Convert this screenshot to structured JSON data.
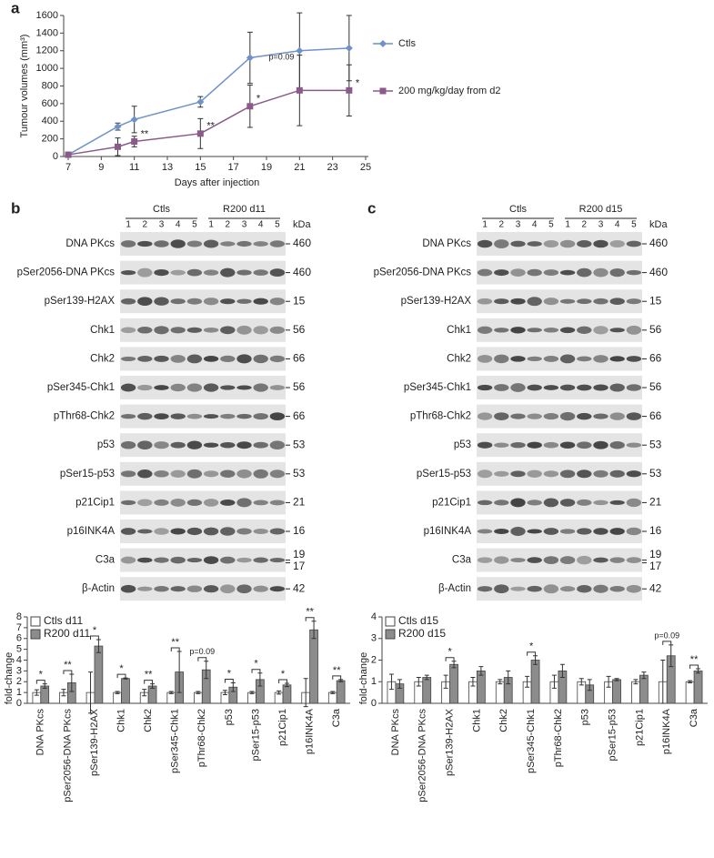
{
  "chart_data": [
    {
      "type": "line",
      "label": "a",
      "x_label": "Days after injection",
      "y_label": "Tumour volumes (mm³)",
      "x": [
        7,
        10,
        11,
        15,
        18,
        21,
        24
      ],
      "series": [
        {
          "name": "Ctls",
          "color": "#6f93c9",
          "marker": "diamond",
          "values": [
            20,
            340,
            420,
            620,
            1120,
            1200,
            1230
          ],
          "errors": [
            10,
            40,
            150,
            60,
            290,
            430,
            370
          ]
        },
        {
          "name": "200 mg/kg/day from d2",
          "color": "#8b5a8a",
          "marker": "square",
          "values": [
            20,
            110,
            170,
            260,
            570,
            750,
            750
          ],
          "errors": [
            10,
            100,
            60,
            170,
            240,
            400,
            290
          ]
        }
      ],
      "significance": [
        null,
        null,
        "**",
        "**",
        "*",
        "p=0.09",
        "*"
      ],
      "xlim": [
        7,
        25
      ],
      "xticks": [
        7,
        9,
        11,
        13,
        15,
        17,
        19,
        21,
        23,
        25
      ],
      "ylim": [
        0,
        1600
      ],
      "yticks": [
        0,
        200,
        400,
        600,
        800,
        1000,
        1200,
        1400,
        1600
      ]
    },
    {
      "type": "bar",
      "y_label": "fold-change",
      "categories": [
        "DNA PKcs",
        "pSer2056-DNA PKcs",
        "pSer139-H2AX",
        "Chk1",
        "Chk2",
        "pSer345-Chk1",
        "pThr68-Chk2",
        "p53",
        "pSer15-p53",
        "p21Cip1",
        "p16INK4A",
        "C3a"
      ],
      "series": [
        {
          "name": "Ctls d11",
          "color": "#ffffff",
          "values": [
            1,
            1,
            1,
            1,
            1,
            1,
            1,
            1,
            1,
            1,
            1,
            1
          ],
          "errors": [
            0.25,
            0.3,
            1.9,
            0.1,
            0.3,
            0.1,
            0.1,
            0.2,
            0.1,
            0.15,
            1.3,
            0.1
          ]
        },
        {
          "name": "R200 d11",
          "color": "#8c8c8c",
          "values": [
            1.6,
            1.9,
            5.3,
            2.3,
            1.6,
            2.9,
            3.1,
            1.5,
            2.2,
            1.7,
            6.8,
            2.1
          ],
          "errors": [
            0.2,
            0.8,
            0.6,
            0.05,
            0.2,
            1.9,
            0.8,
            0.4,
            0.6,
            0.15,
            0.8,
            0.1
          ]
        }
      ],
      "significance": [
        "*",
        "**",
        "*",
        "*",
        "**",
        "**",
        "p=0.09",
        "*",
        "*",
        "*",
        "**",
        "**"
      ],
      "ylim": [
        0,
        8
      ],
      "yticks": [
        0,
        1,
        2,
        3,
        4,
        5,
        6,
        7,
        8
      ]
    },
    {
      "type": "bar",
      "y_label": "fold-change",
      "categories": [
        "DNA PKcs",
        "pSer2056-DNA PKcs",
        "pSer139-H2AX",
        "Chk1",
        "Chk2",
        "pSer345-Chk1",
        "pThr68-Chk2",
        "p53",
        "pSer15-p53",
        "p21Cip1",
        "p16INK4A",
        "C3a"
      ],
      "series": [
        {
          "name": "Ctls d15",
          "color": "#ffffff",
          "values": [
            1,
            1,
            1,
            1,
            1,
            1,
            1,
            1,
            1,
            1,
            1,
            1
          ],
          "errors": [
            0.35,
            0.2,
            0.3,
            0.2,
            0.1,
            0.25,
            0.3,
            0.15,
            0.25,
            0.1,
            1,
            0.05
          ]
        },
        {
          "name": "R200 d15",
          "color": "#8c8c8c",
          "values": [
            0.9,
            1.2,
            1.8,
            1.5,
            1.2,
            2,
            1.5,
            0.85,
            1.1,
            1.3,
            2.2,
            1.5
          ],
          "errors": [
            0.2,
            0.1,
            0.15,
            0.2,
            0.3,
            0.2,
            0.3,
            0.25,
            0.05,
            0.15,
            0.5,
            0.1
          ]
        }
      ],
      "significance": [
        null,
        null,
        "*",
        null,
        null,
        "*",
        null,
        null,
        null,
        null,
        "p=0.09",
        "**"
      ],
      "ylim": [
        0,
        4
      ],
      "yticks": [
        0,
        1,
        2,
        3,
        4
      ]
    }
  ],
  "blots": [
    {
      "label": "b",
      "unit": "kDa",
      "groups": [
        {
          "name": "Ctls",
          "lanes": [
            1,
            2,
            3,
            4,
            5
          ]
        },
        {
          "name": "R200 d11",
          "lanes": [
            1,
            2,
            3,
            4,
            5
          ]
        }
      ],
      "rows": [
        {
          "name": "DNA PKcs",
          "kda": [
            460
          ]
        },
        {
          "name": "pSer2056-DNA PKcs",
          "kda": [
            460
          ]
        },
        {
          "name": "pSer139-H2AX",
          "kda": [
            15
          ]
        },
        {
          "name": "Chk1",
          "kda": [
            56
          ]
        },
        {
          "name": "Chk2",
          "kda": [
            66
          ]
        },
        {
          "name": "pSer345-Chk1",
          "kda": [
            56
          ]
        },
        {
          "name": "pThr68-Chk2",
          "kda": [
            66
          ]
        },
        {
          "name": "p53",
          "kda": [
            53
          ]
        },
        {
          "name": "pSer15-p53",
          "kda": [
            53
          ]
        },
        {
          "name": "p21Cip1",
          "kda": [
            21
          ]
        },
        {
          "name": "p16INK4A",
          "kda": [
            16
          ]
        },
        {
          "name": "C3a",
          "kda": [
            19,
            17
          ]
        },
        {
          "name": "β-Actin",
          "kda": [
            42
          ]
        }
      ]
    },
    {
      "label": "c",
      "unit": "kDa",
      "groups": [
        {
          "name": "Ctls",
          "lanes": [
            1,
            2,
            3,
            4,
            5
          ]
        },
        {
          "name": "R200 d15",
          "lanes": [
            1,
            2,
            3,
            4,
            5
          ]
        }
      ],
      "rows": [
        {
          "name": "DNA PKcs",
          "kda": [
            460
          ]
        },
        {
          "name": "pSer2056-DNA PKcs",
          "kda": [
            460
          ]
        },
        {
          "name": "pSer139-H2AX",
          "kda": [
            15
          ]
        },
        {
          "name": "Chk1",
          "kda": [
            56
          ]
        },
        {
          "name": "Chk2",
          "kda": [
            66
          ]
        },
        {
          "name": "pSer345-Chk1",
          "kda": [
            56
          ]
        },
        {
          "name": "pThr68-Chk2",
          "kda": [
            66
          ]
        },
        {
          "name": "p53",
          "kda": [
            53
          ]
        },
        {
          "name": "pSer15-p53",
          "kda": [
            53
          ]
        },
        {
          "name": "p21Cip1",
          "kda": [
            21
          ]
        },
        {
          "name": "p16INK4A",
          "kda": [
            16
          ]
        },
        {
          "name": "C3a",
          "kda": [
            19,
            17
          ]
        },
        {
          "name": "β-Actin",
          "kda": [
            42
          ]
        }
      ]
    }
  ]
}
